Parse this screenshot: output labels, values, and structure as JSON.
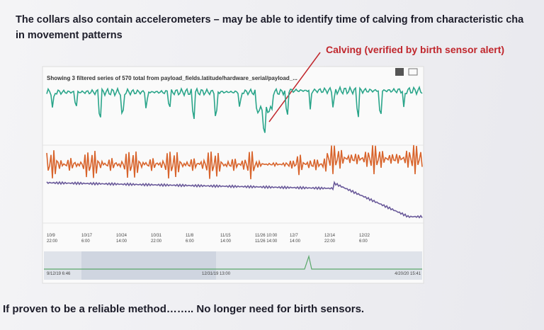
{
  "slide": {
    "heading": [
      "The collars also contain accelerometers – may be able to identify time of calving from characteristic cha",
      "in movement patterns"
    ],
    "annotation": "Calving (verified by birth sensor alert)",
    "chart_header": "Showing 3 filtered series of 570 total from payload_fields.latitude/hardware_serial/payload_...",
    "x_ticks": [
      [
        "10/9",
        "22:00"
      ],
      [
        "10/17",
        "6:00"
      ],
      [
        "10/24",
        "14:00"
      ],
      [
        "10/31",
        "22:00"
      ],
      [
        "11/8",
        "6:00"
      ],
      [
        "11/15",
        "14:00"
      ],
      [
        "11/26 10:00",
        "11/26 14:00"
      ],
      [
        "12/7",
        "14:00"
      ],
      [
        "12/14",
        "22:00"
      ],
      [
        "12/22",
        "6:00"
      ]
    ],
    "range_labels": [
      "9/12/19 6:46",
      "12/31/19 13:00",
      "4/20/20 15:41"
    ],
    "footer": "If proven to be a reliable method…….. No longer need for birth sensors."
  }
}
